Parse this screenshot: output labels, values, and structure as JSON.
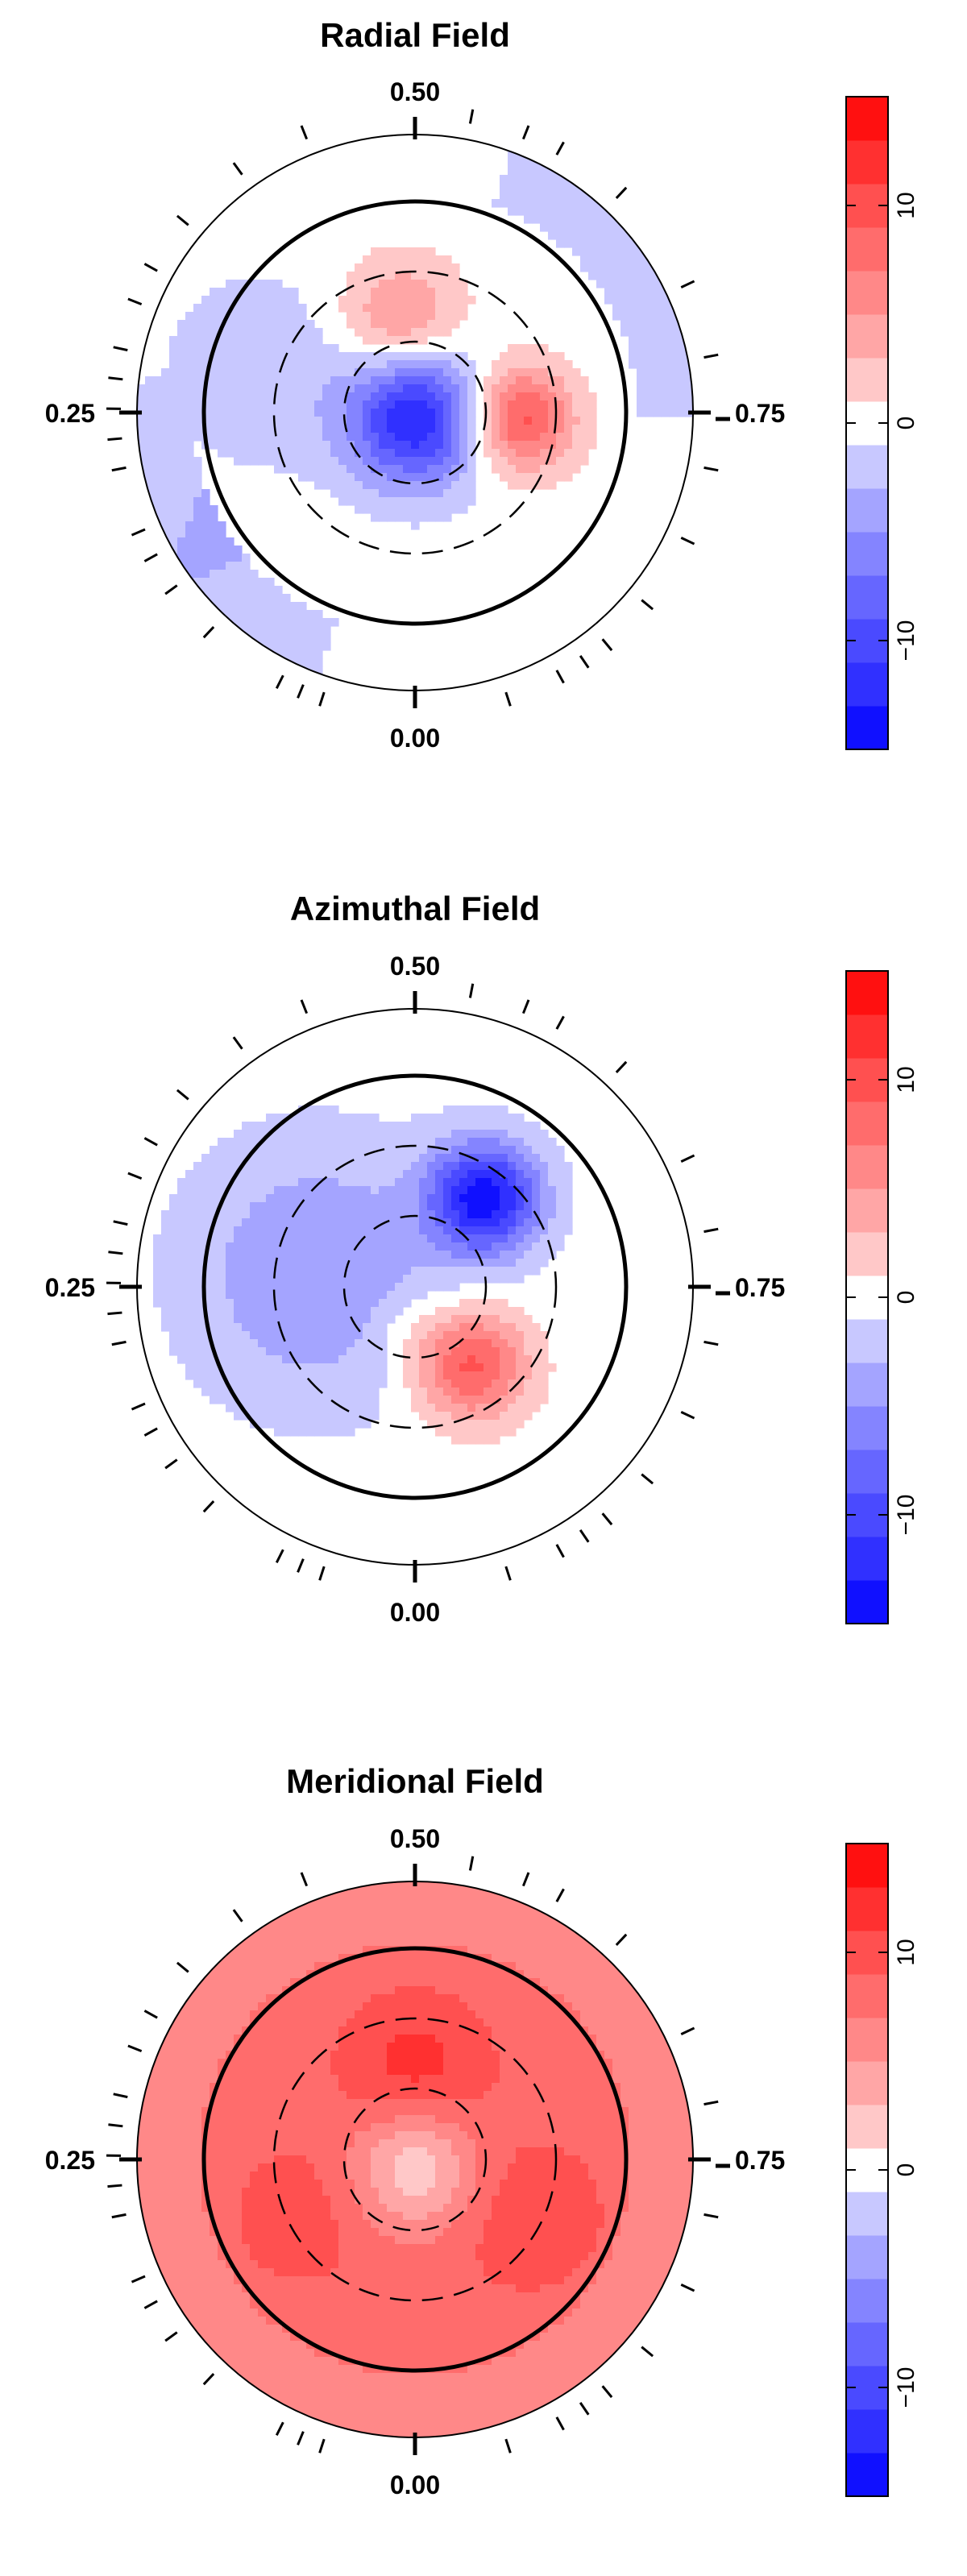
{
  "chart_data": [
    {
      "type": "heatmap",
      "title": "Radial Field",
      "projection": "polar",
      "phase_labels": {
        "bottom": "0.00",
        "left": "0.25",
        "top": "0.50",
        "right": "0.75"
      },
      "colorbar": {
        "range": [
          -15,
          15
        ],
        "ticks": [
          -10,
          0,
          10
        ]
      },
      "features": [
        {
          "kind": "negative spot",
          "phase": 0.5,
          "radius_fraction": 0.0,
          "peak": -13
        },
        {
          "kind": "positive spot",
          "phase": 0.75,
          "radius_fraction": 0.38,
          "peak": 10
        },
        {
          "kind": "positive spot",
          "phase": 0.5,
          "radius_fraction": 0.45,
          "peak": 6
        },
        {
          "kind": "negative band",
          "phase": 0.125,
          "radius_fraction": 0.85,
          "peak": -3
        },
        {
          "kind": "negative band",
          "phase": 0.625,
          "radius_fraction": 0.85,
          "peak": -3
        }
      ]
    },
    {
      "type": "heatmap",
      "title": "Azimuthal Field",
      "projection": "polar",
      "phase_labels": {
        "bottom": "0.00",
        "left": "0.25",
        "top": "0.50",
        "right": "0.75"
      },
      "colorbar": {
        "range": [
          -15,
          15
        ],
        "ticks": [
          -10,
          0,
          10
        ]
      },
      "features": [
        {
          "kind": "negative spot",
          "phase": 0.62,
          "radius_fraction": 0.45,
          "peak": -14
        },
        {
          "kind": "positive spot",
          "phase": 0.88,
          "radius_fraction": 0.38,
          "peak": 10
        },
        {
          "kind": "negative band",
          "phase": 0.3,
          "radius_fraction": 0.5,
          "peak": -4
        }
      ]
    },
    {
      "type": "heatmap",
      "title": "Meridional Field",
      "projection": "polar",
      "phase_labels": {
        "bottom": "0.00",
        "left": "0.25",
        "top": "0.50",
        "right": "0.75"
      },
      "colorbar": {
        "range": [
          -15,
          15
        ],
        "ticks": [
          -10,
          0,
          10
        ]
      },
      "features": [
        {
          "kind": "positive spot",
          "phase": 0.5,
          "radius_fraction": 0.45,
          "peak": 12
        },
        {
          "kind": "positive ring",
          "phase": 0.0,
          "radius_fraction": 0.55,
          "peak": 8
        },
        {
          "kind": "near-zero core",
          "phase": 0.5,
          "radius_fraction": 0.0,
          "peak": 0
        }
      ]
    }
  ]
}
